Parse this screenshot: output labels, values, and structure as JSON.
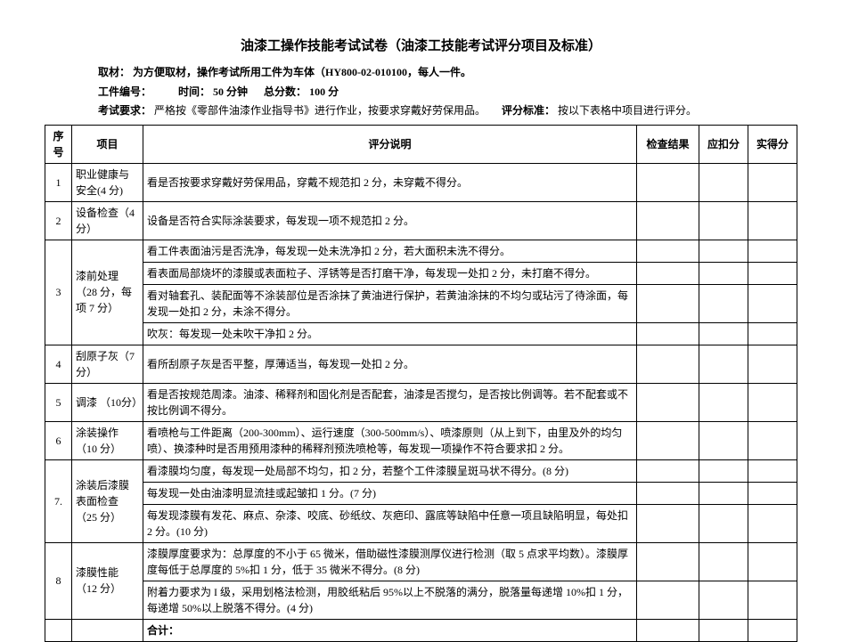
{
  "title": "油漆工操作技能考试试卷（油漆工技能考试评分项目及标准）",
  "meta": {
    "material_label": "取材：",
    "material_text": "为方便取材，操作考试所用工件为车体（HY800-02-010100，每人一件。",
    "partno_label": "工件编号：",
    "time_label": "时间：",
    "time_value": "50 分钟",
    "total_label": "总分数：",
    "total_value": "100 分",
    "req_label": "考试要求：",
    "req_text": "严格按《零部件油漆作业指导书》进行作业，按要求穿戴好劳保用品。",
    "std_label": "评分标准：",
    "std_text": "按以下表格中项目进行评分。"
  },
  "headers": {
    "seq": "序号",
    "item": "项目",
    "desc": "评分说明",
    "res": "检查结果",
    "dek": "应扣分",
    "act": "实得分"
  },
  "rows": {
    "r1_seq": "1",
    "r1_item": "职业健康与安全(4 分)",
    "r1_desc": "看是否按要求穿戴好劳保用品，穿戴不规范扣 2 分，未穿戴不得分。",
    "r2_seq": "2",
    "r2_item": "设备检查（4分）",
    "r2_desc": "设备是否符合实际涂装要求，每发现一项不规范扣 2 分。",
    "r3_seq": "3",
    "r3_item": "漆前处理（28 分，每项 7 分）",
    "r3_d1": "看工件表面油污是否洗净，每发现一处未洗净扣 2 分，若大面积未洗不得分。",
    "r3_d2": "看表面局部烧坏的漆膜或表面粒子、浮锈等是否打磨干净，每发现一处扣 2 分，未打磨不得分。",
    "r3_d3": "看对轴套孔、装配面等不涂装部位是否涂抹了黄油进行保护，若黄油涂抹的不均匀或玷污了待涂面，每发现一处扣 2 分，未涂不得分。",
    "r3_d4": "吹灰：每发现一处未吹干净扣 2 分。",
    "r4_seq": "4",
    "r4_item": "刮原子灰（7 分）",
    "r4_desc": "看所刮原子灰是否平整，厚薄适当，每发现一处扣 2 分。",
    "r5_seq": "5",
    "r5_item": "调漆 （10分）",
    "r5_desc": "看是否按规范周漆。油漆、稀释剂和固化剂是否配套，油漆是否搅匀，是否按比例调等。若不配套或不按比例调不得分。",
    "r6_seq": "6",
    "r6_item": "涂装操作（10 分）",
    "r6_desc": "看喷枪与工件距离（200-300mm）、运行速度（300-500mm/s）、喷漆原则（从上到下，由里及外的均匀喷）、换漆种时是否用预用漆种的稀释剂预洗喷枪等，每发现一项操作不符合要求扣 2 分。",
    "r7_seq": "7.",
    "r7_item": "涂装后漆膜表面检查（25 分）",
    "r7_d1": "看漆膜均匀度，每发现一处局部不均匀，扣 2 分，若整个工件漆膜呈斑马状不得分。(8 分)",
    "r7_d2": "每发现一处由油漆明显流挂或起皱扣 1 分。(7 分)",
    "r7_d3": "每发现漆膜有发花、麻点、杂漆、咬底、砂纸纹、灰疤印、露底等缺陷中任意一项且缺陷明显，每处扣 2 分。(10 分)",
    "r8_seq": "8",
    "r8_item": "漆膜性能（12 分）",
    "r8_d1": "漆膜厚度要求为：总厚度的不小于 65 微米，借助磁性漆膜测厚仪进行检测（取 5 点求平均数）。漆膜厚度每低于总厚度的 5%扣 1 分，低于 35 微米不得分。(8 分)",
    "r8_d2": "附着力要求为 I 级，采用划格法检测，用胶纸粘后 95%以上不脱落的满分，脱落量每递增 10%扣 1 分，每递增 50%以上脱落不得分。(4 分)",
    "total_label": "合计："
  }
}
